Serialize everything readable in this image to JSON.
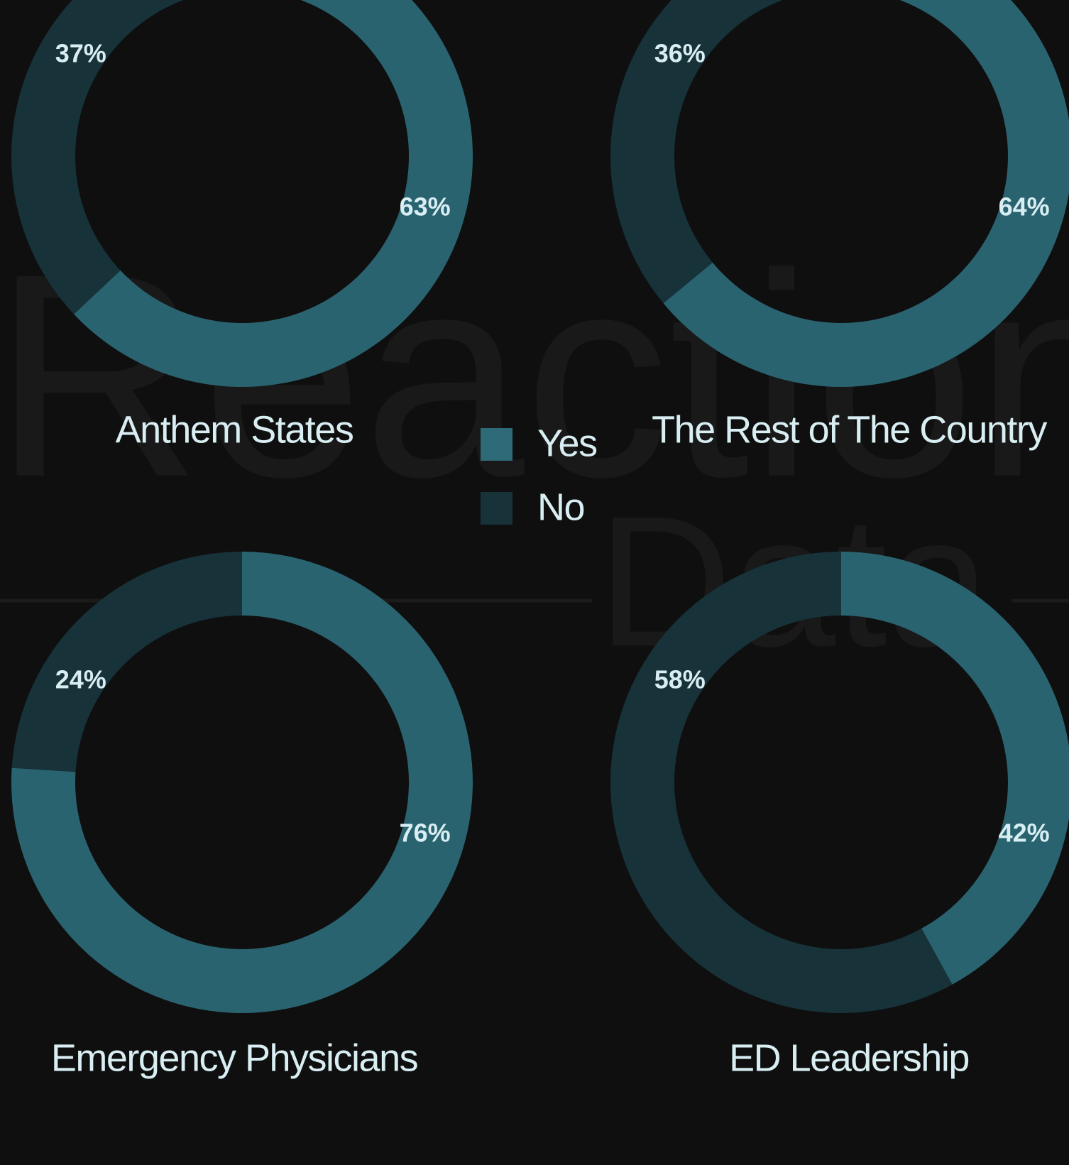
{
  "watermark": [
    "Reaction",
    "Data"
  ],
  "chart_data": [
    {
      "type": "pie",
      "donut": true,
      "title": "Anthem States",
      "categories": [
        "Yes",
        "No"
      ],
      "values": [
        63,
        37
      ],
      "value_labels": [
        "63%",
        "37%"
      ],
      "colors": [
        "#2a6370",
        "#173239"
      ],
      "legend": "center"
    },
    {
      "type": "pie",
      "donut": true,
      "title": "The Rest of The Country",
      "categories": [
        "Yes",
        "No"
      ],
      "values": [
        64,
        36
      ],
      "value_labels": [
        "64%",
        "36%"
      ],
      "colors": [
        "#2a6370",
        "#173239"
      ]
    },
    {
      "type": "pie",
      "donut": true,
      "title": "Emergency Physicians",
      "categories": [
        "Yes",
        "No"
      ],
      "values": [
        76,
        24
      ],
      "value_labels": [
        "76%",
        "24%"
      ],
      "colors": [
        "#2a6370",
        "#173239"
      ]
    },
    {
      "type": "pie",
      "donut": true,
      "title": "ED Leadership",
      "categories": [
        "Yes",
        "No"
      ],
      "values": [
        42,
        58
      ],
      "value_labels": [
        "42%",
        "58%"
      ],
      "colors": [
        "#2a6370",
        "#173239"
      ]
    }
  ]
}
